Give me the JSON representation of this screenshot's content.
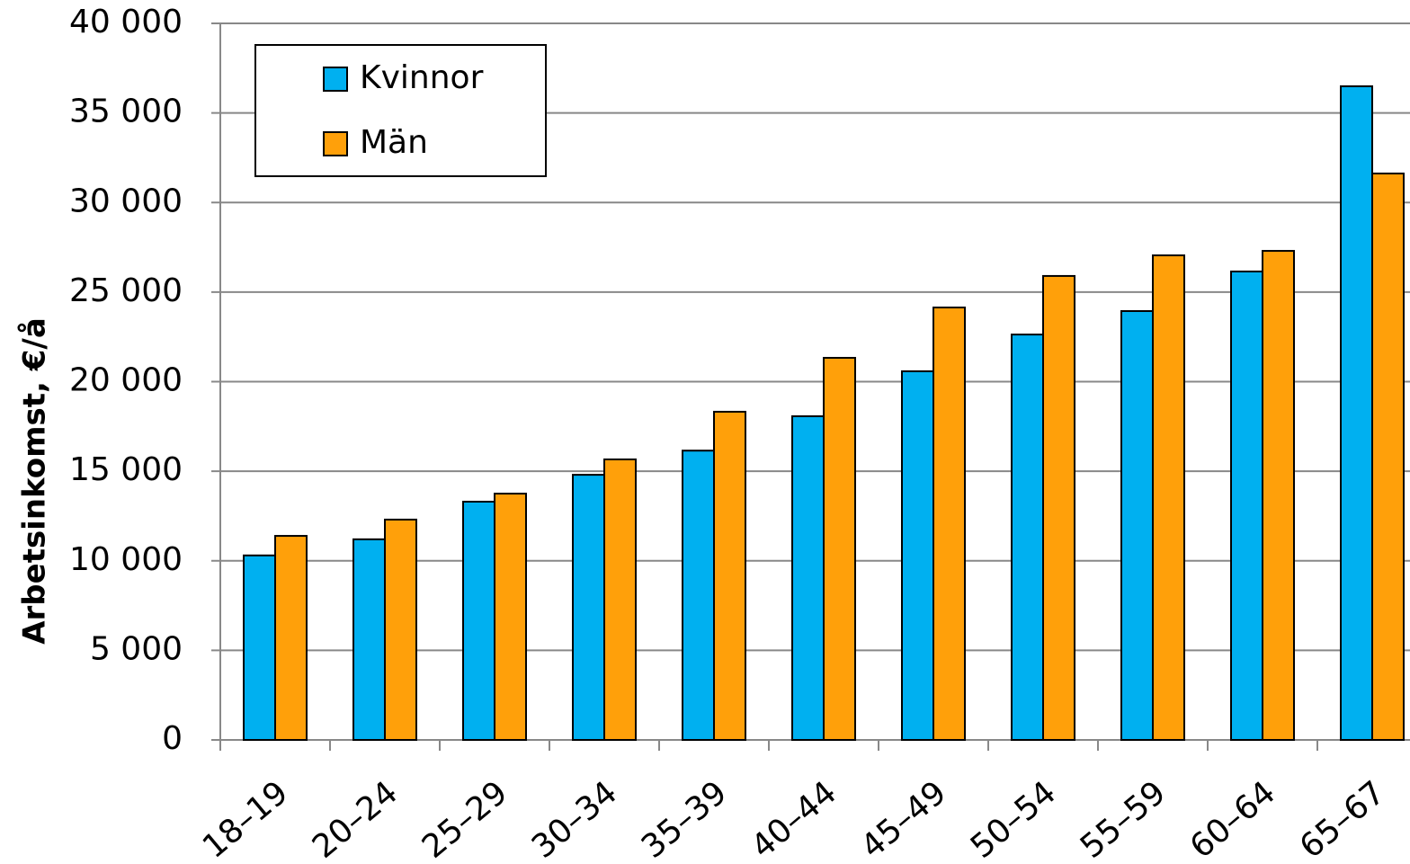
{
  "chart_data": {
    "type": "bar",
    "y_label": "Arbetsinkomst, €/å",
    "categories": [
      "18–19",
      "20–24",
      "25–29",
      "30–34",
      "35–39",
      "40–44",
      "45–49",
      "50–54",
      "55–59",
      "60–64",
      "65–67"
    ],
    "series": [
      {
        "name": "Kvinnor",
        "color": "#00b0f0",
        "values": [
          10300,
          11200,
          13300,
          14800,
          16150,
          18070,
          20580,
          22630,
          23940,
          26150,
          36490
        ]
      },
      {
        "name": "Män",
        "color": "#ffa00a",
        "values": [
          11390,
          12300,
          13750,
          15660,
          18320,
          21330,
          24140,
          25900,
          27050,
          27300,
          31620
        ]
      }
    ],
    "ylim": [
      0,
      40000
    ],
    "yticks": [
      0,
      {
        "value": 5000,
        "label": "5 000"
      },
      {
        "value": 10000,
        "label": "10 000"
      },
      {
        "value": 15000,
        "label": "15 000"
      },
      {
        "value": 20000,
        "label": "20 000"
      },
      {
        "value": 25000,
        "label": "25 000"
      },
      {
        "value": 30000,
        "label": "30 000"
      },
      {
        "value": 35000,
        "label": "35 000"
      },
      {
        "value": 40000,
        "label": "40 000"
      }
    ],
    "grid": true,
    "legend": "upper-left"
  }
}
